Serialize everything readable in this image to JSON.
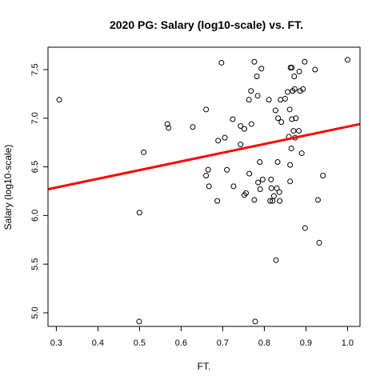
{
  "chart_data": {
    "type": "scatter",
    "title": "2020 PG: Salary (log10-scale) vs. FT.",
    "xlabel": "FT.",
    "ylabel": "Salary (log10-scale)",
    "xlim": [
      0.28,
      1.03
    ],
    "ylim": [
      4.86,
      7.73
    ],
    "x_ticks": [
      0.3,
      0.4,
      0.5,
      0.6,
      0.7,
      0.8,
      0.9,
      1.0
    ],
    "x_tick_labels": [
      "0.3",
      "0.4",
      "0.5",
      "0.6",
      "0.7",
      "0.8",
      "0.9",
      "1.0"
    ],
    "y_ticks": [
      5.0,
      5.5,
      6.0,
      6.5,
      7.0,
      7.5
    ],
    "y_tick_labels": [
      "5.0",
      "5.5",
      "6.0",
      "6.5",
      "7.0",
      "7.5"
    ],
    "grid": false,
    "colors": {
      "points": "#000000",
      "fit_line": "#ff0000"
    },
    "fit_line": {
      "x": [
        0.28,
        1.03
      ],
      "y": [
        6.27,
        6.94
      ]
    },
    "points": [
      {
        "x": 0.307,
        "y": 7.19
      },
      {
        "x": 0.499,
        "y": 4.91
      },
      {
        "x": 0.5,
        "y": 6.03
      },
      {
        "x": 0.51,
        "y": 6.65
      },
      {
        "x": 0.567,
        "y": 6.94
      },
      {
        "x": 0.57,
        "y": 6.9
      },
      {
        "x": 0.628,
        "y": 6.91
      },
      {
        "x": 0.66,
        "y": 7.09
      },
      {
        "x": 0.66,
        "y": 6.41
      },
      {
        "x": 0.665,
        "y": 6.47
      },
      {
        "x": 0.667,
        "y": 6.3
      },
      {
        "x": 0.687,
        "y": 6.15
      },
      {
        "x": 0.689,
        "y": 6.77
      },
      {
        "x": 0.697,
        "y": 7.57
      },
      {
        "x": 0.705,
        "y": 6.8
      },
      {
        "x": 0.71,
        "y": 6.47
      },
      {
        "x": 0.724,
        "y": 6.99
      },
      {
        "x": 0.726,
        "y": 6.3
      },
      {
        "x": 0.743,
        "y": 6.92
      },
      {
        "x": 0.743,
        "y": 6.73
      },
      {
        "x": 0.752,
        "y": 6.89
      },
      {
        "x": 0.752,
        "y": 6.21
      },
      {
        "x": 0.756,
        "y": 6.23
      },
      {
        "x": 0.763,
        "y": 7.19
      },
      {
        "x": 0.764,
        "y": 6.43
      },
      {
        "x": 0.768,
        "y": 7.28
      },
      {
        "x": 0.769,
        "y": 6.94
      },
      {
        "x": 0.776,
        "y": 7.58
      },
      {
        "x": 0.776,
        "y": 6.16
      },
      {
        "x": 0.778,
        "y": 4.91
      },
      {
        "x": 0.782,
        "y": 7.43
      },
      {
        "x": 0.784,
        "y": 7.23
      },
      {
        "x": 0.785,
        "y": 6.34
      },
      {
        "x": 0.789,
        "y": 6.55
      },
      {
        "x": 0.79,
        "y": 6.27
      },
      {
        "x": 0.793,
        "y": 7.51
      },
      {
        "x": 0.796,
        "y": 6.37
      },
      {
        "x": 0.811,
        "y": 7.19
      },
      {
        "x": 0.814,
        "y": 6.15
      },
      {
        "x": 0.816,
        "y": 6.37
      },
      {
        "x": 0.817,
        "y": 6.28
      },
      {
        "x": 0.82,
        "y": 6.15
      },
      {
        "x": 0.823,
        "y": 6.2
      },
      {
        "x": 0.827,
        "y": 7.08
      },
      {
        "x": 0.828,
        "y": 5.54
      },
      {
        "x": 0.83,
        "y": 6.28
      },
      {
        "x": 0.832,
        "y": 6.55
      },
      {
        "x": 0.833,
        "y": 7.0
      },
      {
        "x": 0.836,
        "y": 6.24
      },
      {
        "x": 0.837,
        "y": 6.15
      },
      {
        "x": 0.839,
        "y": 7.19
      },
      {
        "x": 0.841,
        "y": 6.96
      },
      {
        "x": 0.85,
        "y": 7.2
      },
      {
        "x": 0.856,
        "y": 7.27
      },
      {
        "x": 0.859,
        "y": 6.81
      },
      {
        "x": 0.861,
        "y": 7.09
      },
      {
        "x": 0.862,
        "y": 6.35
      },
      {
        "x": 0.862,
        "y": 6.52
      },
      {
        "x": 0.863,
        "y": 7.52
      },
      {
        "x": 0.865,
        "y": 6.69
      },
      {
        "x": 0.866,
        "y": 6.99
      },
      {
        "x": 0.866,
        "y": 7.52
      },
      {
        "x": 0.868,
        "y": 7.28
      },
      {
        "x": 0.87,
        "y": 6.87
      },
      {
        "x": 0.872,
        "y": 7.43
      },
      {
        "x": 0.873,
        "y": 7.3
      },
      {
        "x": 0.874,
        "y": 6.8
      },
      {
        "x": 0.876,
        "y": 7.0
      },
      {
        "x": 0.883,
        "y": 6.87
      },
      {
        "x": 0.884,
        "y": 7.48
      },
      {
        "x": 0.886,
        "y": 7.28
      },
      {
        "x": 0.89,
        "y": 6.64
      },
      {
        "x": 0.893,
        "y": 7.3
      },
      {
        "x": 0.897,
        "y": 7.58
      },
      {
        "x": 0.898,
        "y": 5.87
      },
      {
        "x": 0.922,
        "y": 7.5
      },
      {
        "x": 0.929,
        "y": 6.16
      },
      {
        "x": 0.932,
        "y": 5.72
      },
      {
        "x": 0.941,
        "y": 6.41
      },
      {
        "x": 1.0,
        "y": 7.6
      }
    ]
  }
}
